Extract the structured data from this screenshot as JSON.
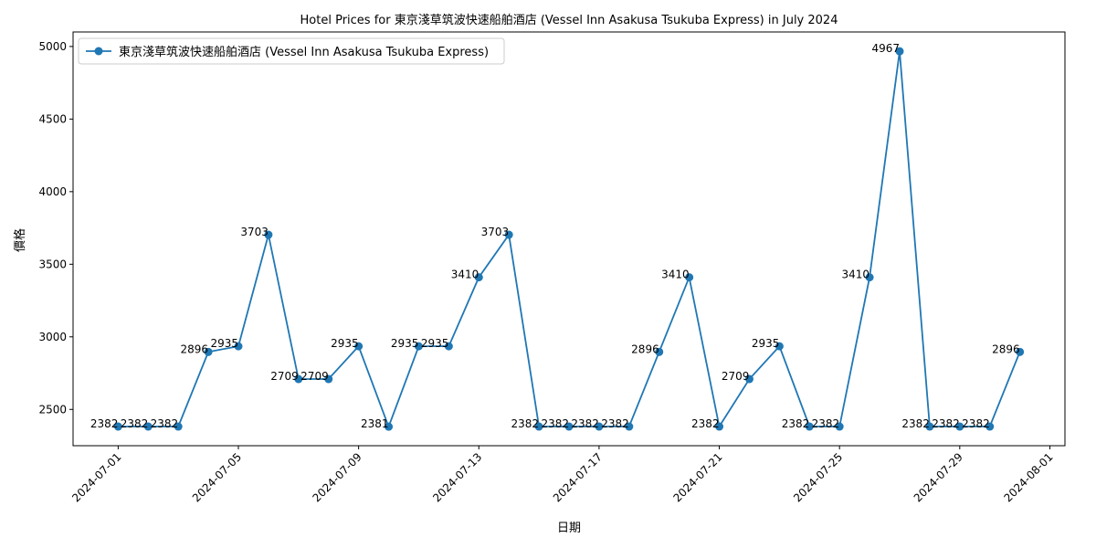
{
  "chart_data": {
    "type": "line",
    "title": "Hotel Prices for 東京淺草筑波快速船舶酒店 (Vessel Inn Asakusa Tsukuba Express) in July 2024",
    "xlabel": "日期",
    "ylabel": "價格",
    "x": [
      "2024-07-01",
      "2024-07-02",
      "2024-07-03",
      "2024-07-04",
      "2024-07-05",
      "2024-07-06",
      "2024-07-07",
      "2024-07-08",
      "2024-07-09",
      "2024-07-10",
      "2024-07-11",
      "2024-07-12",
      "2024-07-13",
      "2024-07-14",
      "2024-07-15",
      "2024-07-16",
      "2024-07-17",
      "2024-07-18",
      "2024-07-19",
      "2024-07-20",
      "2024-07-21",
      "2024-07-22",
      "2024-07-23",
      "2024-07-24",
      "2024-07-25",
      "2024-07-26",
      "2024-07-27",
      "2024-07-28",
      "2024-07-29",
      "2024-07-30",
      "2024-07-31"
    ],
    "series": [
      {
        "name": "東京淺草筑波快速船舶酒店 (Vessel Inn Asakusa Tsukuba Express)",
        "values": [
          2382,
          2382,
          2382,
          2896,
          2935,
          3703,
          2709,
          2709,
          2935,
          2381,
          2935,
          2935,
          3410,
          3703,
          2382,
          2382,
          2382,
          2382,
          2896,
          3410,
          2382,
          2709,
          2935,
          2382,
          2382,
          3410,
          4967,
          2382,
          2382,
          2382,
          2896
        ]
      }
    ],
    "x_ticks": [
      "2024-07-01",
      "2024-07-05",
      "2024-07-09",
      "2024-07-13",
      "2024-07-17",
      "2024-07-21",
      "2024-07-25",
      "2024-07-29",
      "2024-08-01"
    ],
    "y_ticks": [
      2500,
      3000,
      3500,
      4000,
      4500,
      5000
    ],
    "ylim": [
      2250,
      5100
    ],
    "xlim": [
      "2024-06-29",
      "2024-08-01"
    ],
    "grid": false,
    "legend_position": "top-left",
    "colors": {
      "series": "#1f77b4",
      "axis": "#000000"
    }
  }
}
